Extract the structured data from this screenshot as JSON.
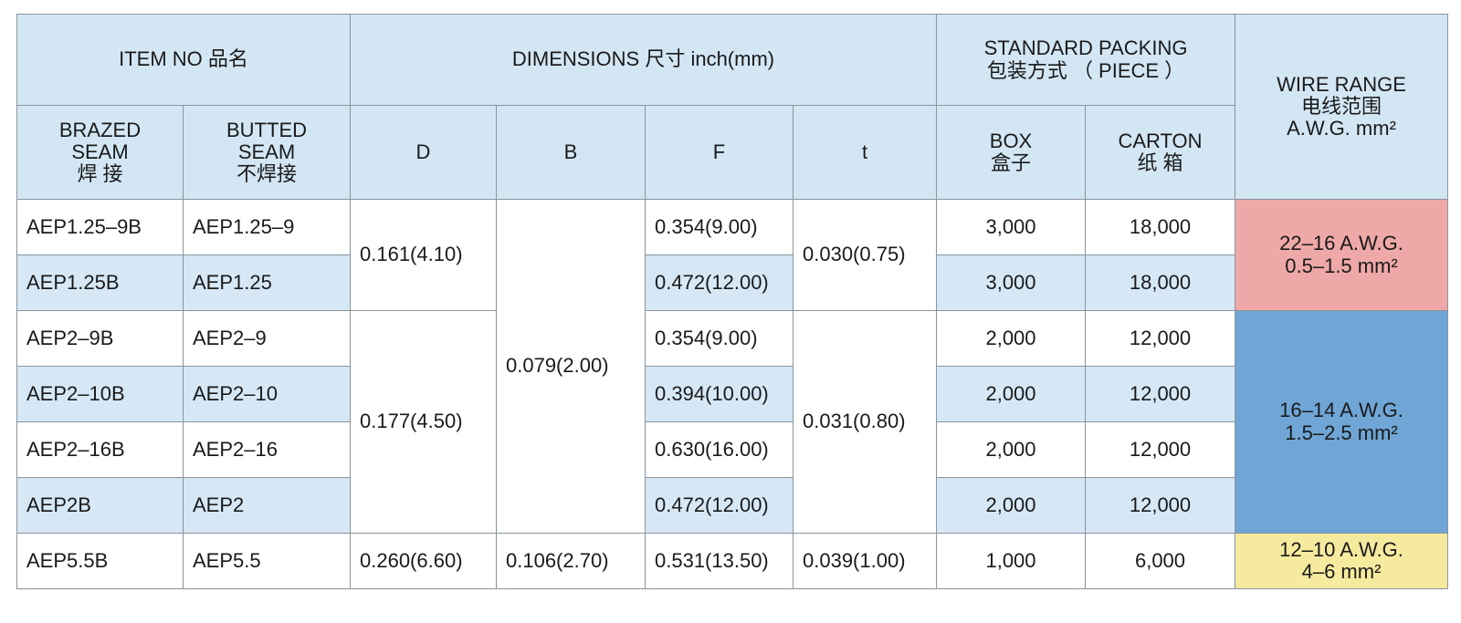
{
  "table": {
    "header": {
      "item_no": "ITEM NO 品名",
      "dimensions": "DIMENSIONS 尺寸  inch(mm)",
      "packing": [
        "STANDARD PACKING",
        "包装方式 （ PIECE ）"
      ],
      "wire_range": [
        "WIRE RANGE",
        "电线范围",
        "A.W.G.  mm²"
      ],
      "brazed": [
        "BRAZED",
        "SEAM",
        "焊  接"
      ],
      "butted": [
        "BUTTED",
        "SEAM",
        "不焊接"
      ],
      "d": "D",
      "b": "B",
      "f": "F",
      "t": "t",
      "box": [
        "BOX",
        "盒子"
      ],
      "carton": [
        "CARTON",
        "纸 箱"
      ]
    },
    "rows": [
      [
        "AEP1.25–9B",
        "AEP1.25–9",
        "0.354(9.00)",
        "3,000",
        "18,000"
      ],
      [
        "AEP1.25B",
        "AEP1.25",
        "0.472(12.00)",
        "3,000",
        "18,000"
      ],
      [
        "AEP2–9B",
        "AEP2–9",
        "0.354(9.00)",
        "2,000",
        "12,000"
      ],
      [
        "AEP2–10B",
        "AEP2–10",
        "0.394(10.00)",
        "2,000",
        "12,000"
      ],
      [
        "AEP2–16B",
        "AEP2–16",
        "0.630(16.00)",
        "2,000",
        "12,000"
      ],
      [
        "AEP2B",
        "AEP2",
        "0.472(12.00)",
        "2,000",
        "12,000"
      ],
      [
        "AEP5.5B",
        "AEP5.5",
        "0.531(13.50)",
        "1,000",
        "6,000"
      ]
    ],
    "d_groups": [
      "0.161(4.10)",
      "0.177(4.50)",
      "0.260(6.60)"
    ],
    "b_groups": [
      "0.079(2.00)",
      "0.106(2.70)"
    ],
    "t_groups": [
      "0.030(0.75)",
      "0.031(0.80)",
      "0.039(1.00)"
    ],
    "wire_groups": [
      [
        "22–16 A.W.G.",
        "0.5–1.5  mm²"
      ],
      [
        "16–14 A.W.G.",
        "1.5–2.5  mm²"
      ],
      [
        "12–10  A.W.G.",
        "4–6  mm²"
      ]
    ]
  }
}
